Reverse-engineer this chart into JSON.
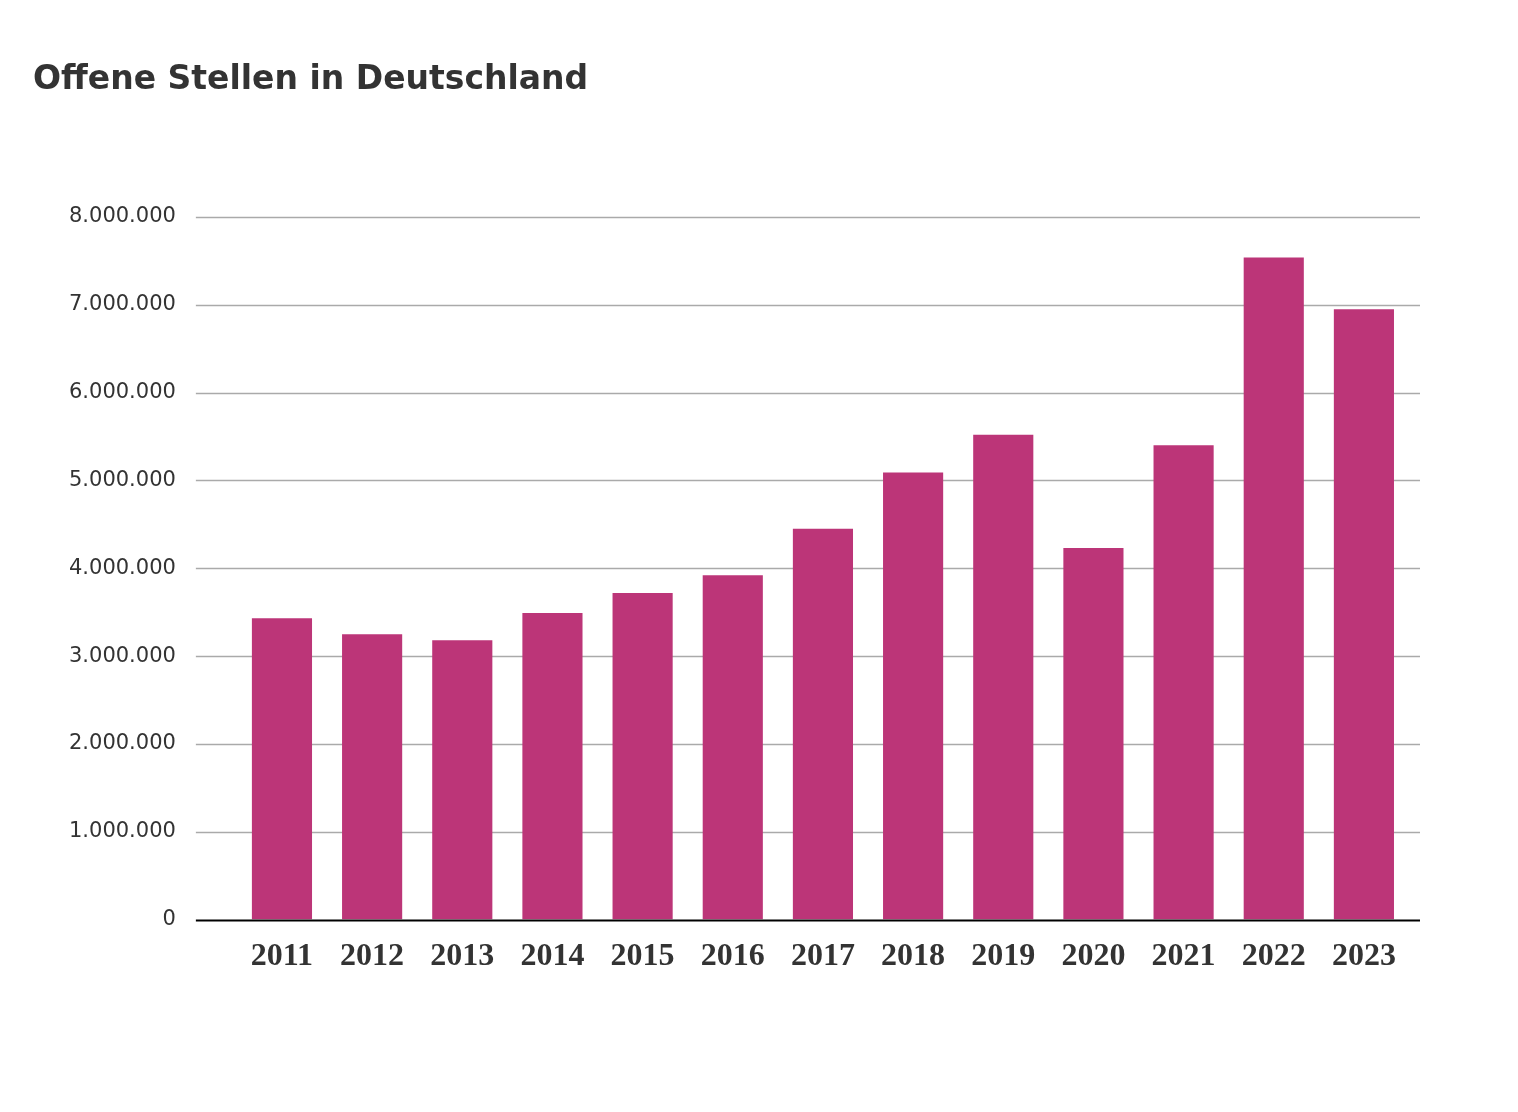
{
  "chart_data": {
    "type": "bar",
    "title": "Offene Stellen in Deutschland",
    "categories": [
      "2011",
      "2012",
      "2013",
      "2014",
      "2015",
      "2016",
      "2017",
      "2018",
      "2019",
      "2020",
      "2021",
      "2022",
      "2023"
    ],
    "values": [
      3430000,
      3250000,
      3180000,
      3490000,
      3720000,
      3920000,
      4450000,
      5090000,
      5520000,
      4230000,
      5400000,
      7540000,
      6950000
    ],
    "color": "#bc3578",
    "ylim": [
      0,
      8000000
    ],
    "yticks": [
      0,
      {
        "value": 1000000,
        "label": "1.000.000"
      },
      {
        "value": 2000000,
        "label": "2.000.000"
      },
      {
        "value": 3000000,
        "label": "3.000.000"
      },
      {
        "value": 4000000,
        "label": "4.000.000"
      },
      {
        "value": 5000000,
        "label": "5.000.000"
      },
      {
        "value": 6000000,
        "label": "6.000.000"
      },
      {
        "value": 7000000,
        "label": "7.000.000"
      },
      {
        "value": 8000000,
        "label": "8.000.000"
      }
    ],
    "grid": "y"
  }
}
